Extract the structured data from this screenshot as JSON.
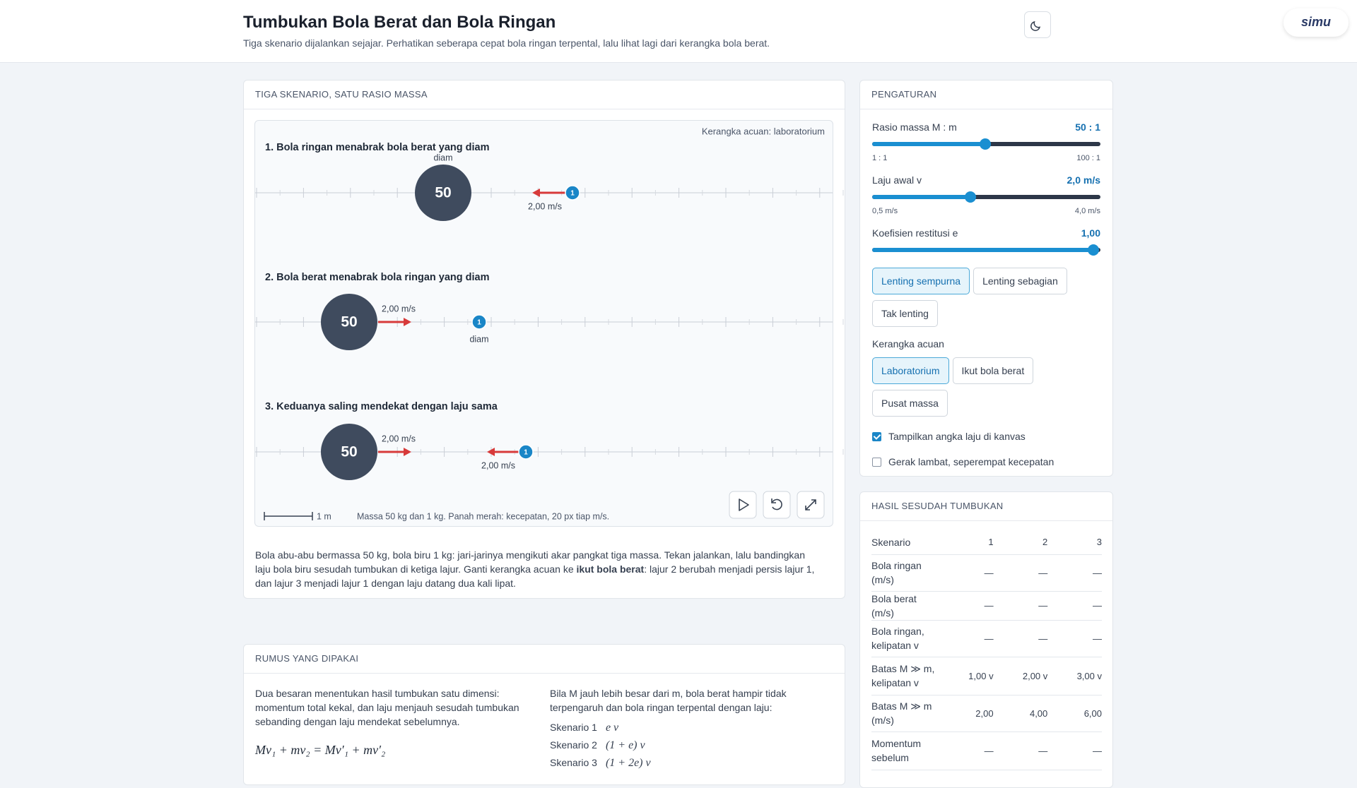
{
  "header": {
    "title": "Tumbukan Bola Berat dan Bola Ringan",
    "subtitle": "Tiga skenario dijalankan sejajar. Perhatikan seberapa cepat bola ringan terpental, lalu lihat lagi dari kerangka bola berat.",
    "logo": "simu"
  },
  "simulation": {
    "heading": "TIGA SKENARIO, SATU RASIO MASSA",
    "frame_label": "Kerangka acuan: laboratorium",
    "lanes": [
      {
        "title": "1. Bola ringan menabrak bola berat yang diam",
        "heavy": "50",
        "light": "1",
        "heavy_label": "diam",
        "light_label": "2,00 m/s"
      },
      {
        "title": "2. Bola berat menabrak bola ringan yang diam",
        "heavy": "50",
        "light": "1",
        "heavy_label": "2,00 m/s",
        "light_label": "diam"
      },
      {
        "title": "3. Keduanya saling mendekat dengan laju sama",
        "heavy": "50",
        "light": "1",
        "heavy_label": "2,00 m/s",
        "light_label": "2,00 m/s"
      }
    ],
    "scale_label": "1 m",
    "caption": "Massa 50 kg dan 1 kg. Panah merah: kecepatan, 20 px tiap m/s.",
    "description": {
      "before": "Bola abu-abu bermassa 50 kg, bola biru 1 kg: jari-jarinya mengikuti akar pangkat tiga massa. Tekan jalankan, lalu bandingkan laju bola biru sesudah tumbukan di ketiga lajur. Ganti kerangka acuan ke ",
      "bold": "ikut bola berat",
      "after": ": lajur 2 berubah menjadi persis lajur 1, dan lajur 3 menjadi lajur 1 dengan laju datang dua kali lipat."
    }
  },
  "formulas": {
    "heading": "RUMUS YANG DIPAKAI",
    "left_text": "Dua besaran menentukan hasil tumbukan satu dimensi: momentum total kekal, dan laju menjauh sesudah tumbukan sebanding dengan laju mendekat sebelumnya.",
    "equation": "Mv₁ + mv₂ = Mv′₁ + mv′₂",
    "right_text": "Bila M jauh lebih besar dari m, bola berat hampir tidak terpengaruh dan bola ringan terpental dengan laju:",
    "rows": [
      {
        "label": "Skenario 1",
        "formula": "e v"
      },
      {
        "label": "Skenario 2",
        "formula": "(1 + e) v"
      },
      {
        "label": "Skenario 3",
        "formula": "(1 + 2e) v"
      }
    ]
  },
  "settings": {
    "heading": "PENGATURAN",
    "sliders": [
      {
        "label": "Rasio massa M : m",
        "value": "50 : 1",
        "min_label": "1 : 1",
        "max_label": "100 : 1"
      },
      {
        "label": "Laju awal v",
        "value": "2,0 m/s",
        "min_label": "0,5 m/s",
        "max_label": "4,0 m/s"
      },
      {
        "label": "Koefisien restitusi e",
        "value": "1,00"
      }
    ],
    "restitution_buttons": [
      "Lenting sempurna",
      "Lenting sebagian",
      "Tak lenting"
    ],
    "frame_heading": "Kerangka acuan",
    "frame_buttons": [
      "Laboratorium",
      "Ikut bola berat",
      "Pusat massa"
    ],
    "checkboxes": [
      "Tampilkan angka laju di kanvas",
      "Gerak lambat, seperempat kecepatan"
    ]
  },
  "results": {
    "heading": "HASIL SESUDAH TUMBUKAN",
    "columns": [
      "Skenario",
      "1",
      "2",
      "3"
    ],
    "rows": [
      [
        "Bola ringan (m/s)",
        "—",
        "—",
        "—"
      ],
      [
        "Bola berat (m/s)",
        "—",
        "—",
        "—"
      ],
      [
        "Bola ringan, kelipatan v",
        "—",
        "—",
        "—"
      ],
      [
        "Batas M ≫ m, kelipatan v",
        "1,00 v",
        "2,00 v",
        "3,00 v"
      ],
      [
        "Batas M ≫ m (m/s)",
        "2,00",
        "4,00",
        "6,00"
      ],
      [
        "Momentum sebelum",
        "—",
        "—",
        "—"
      ]
    ]
  }
}
